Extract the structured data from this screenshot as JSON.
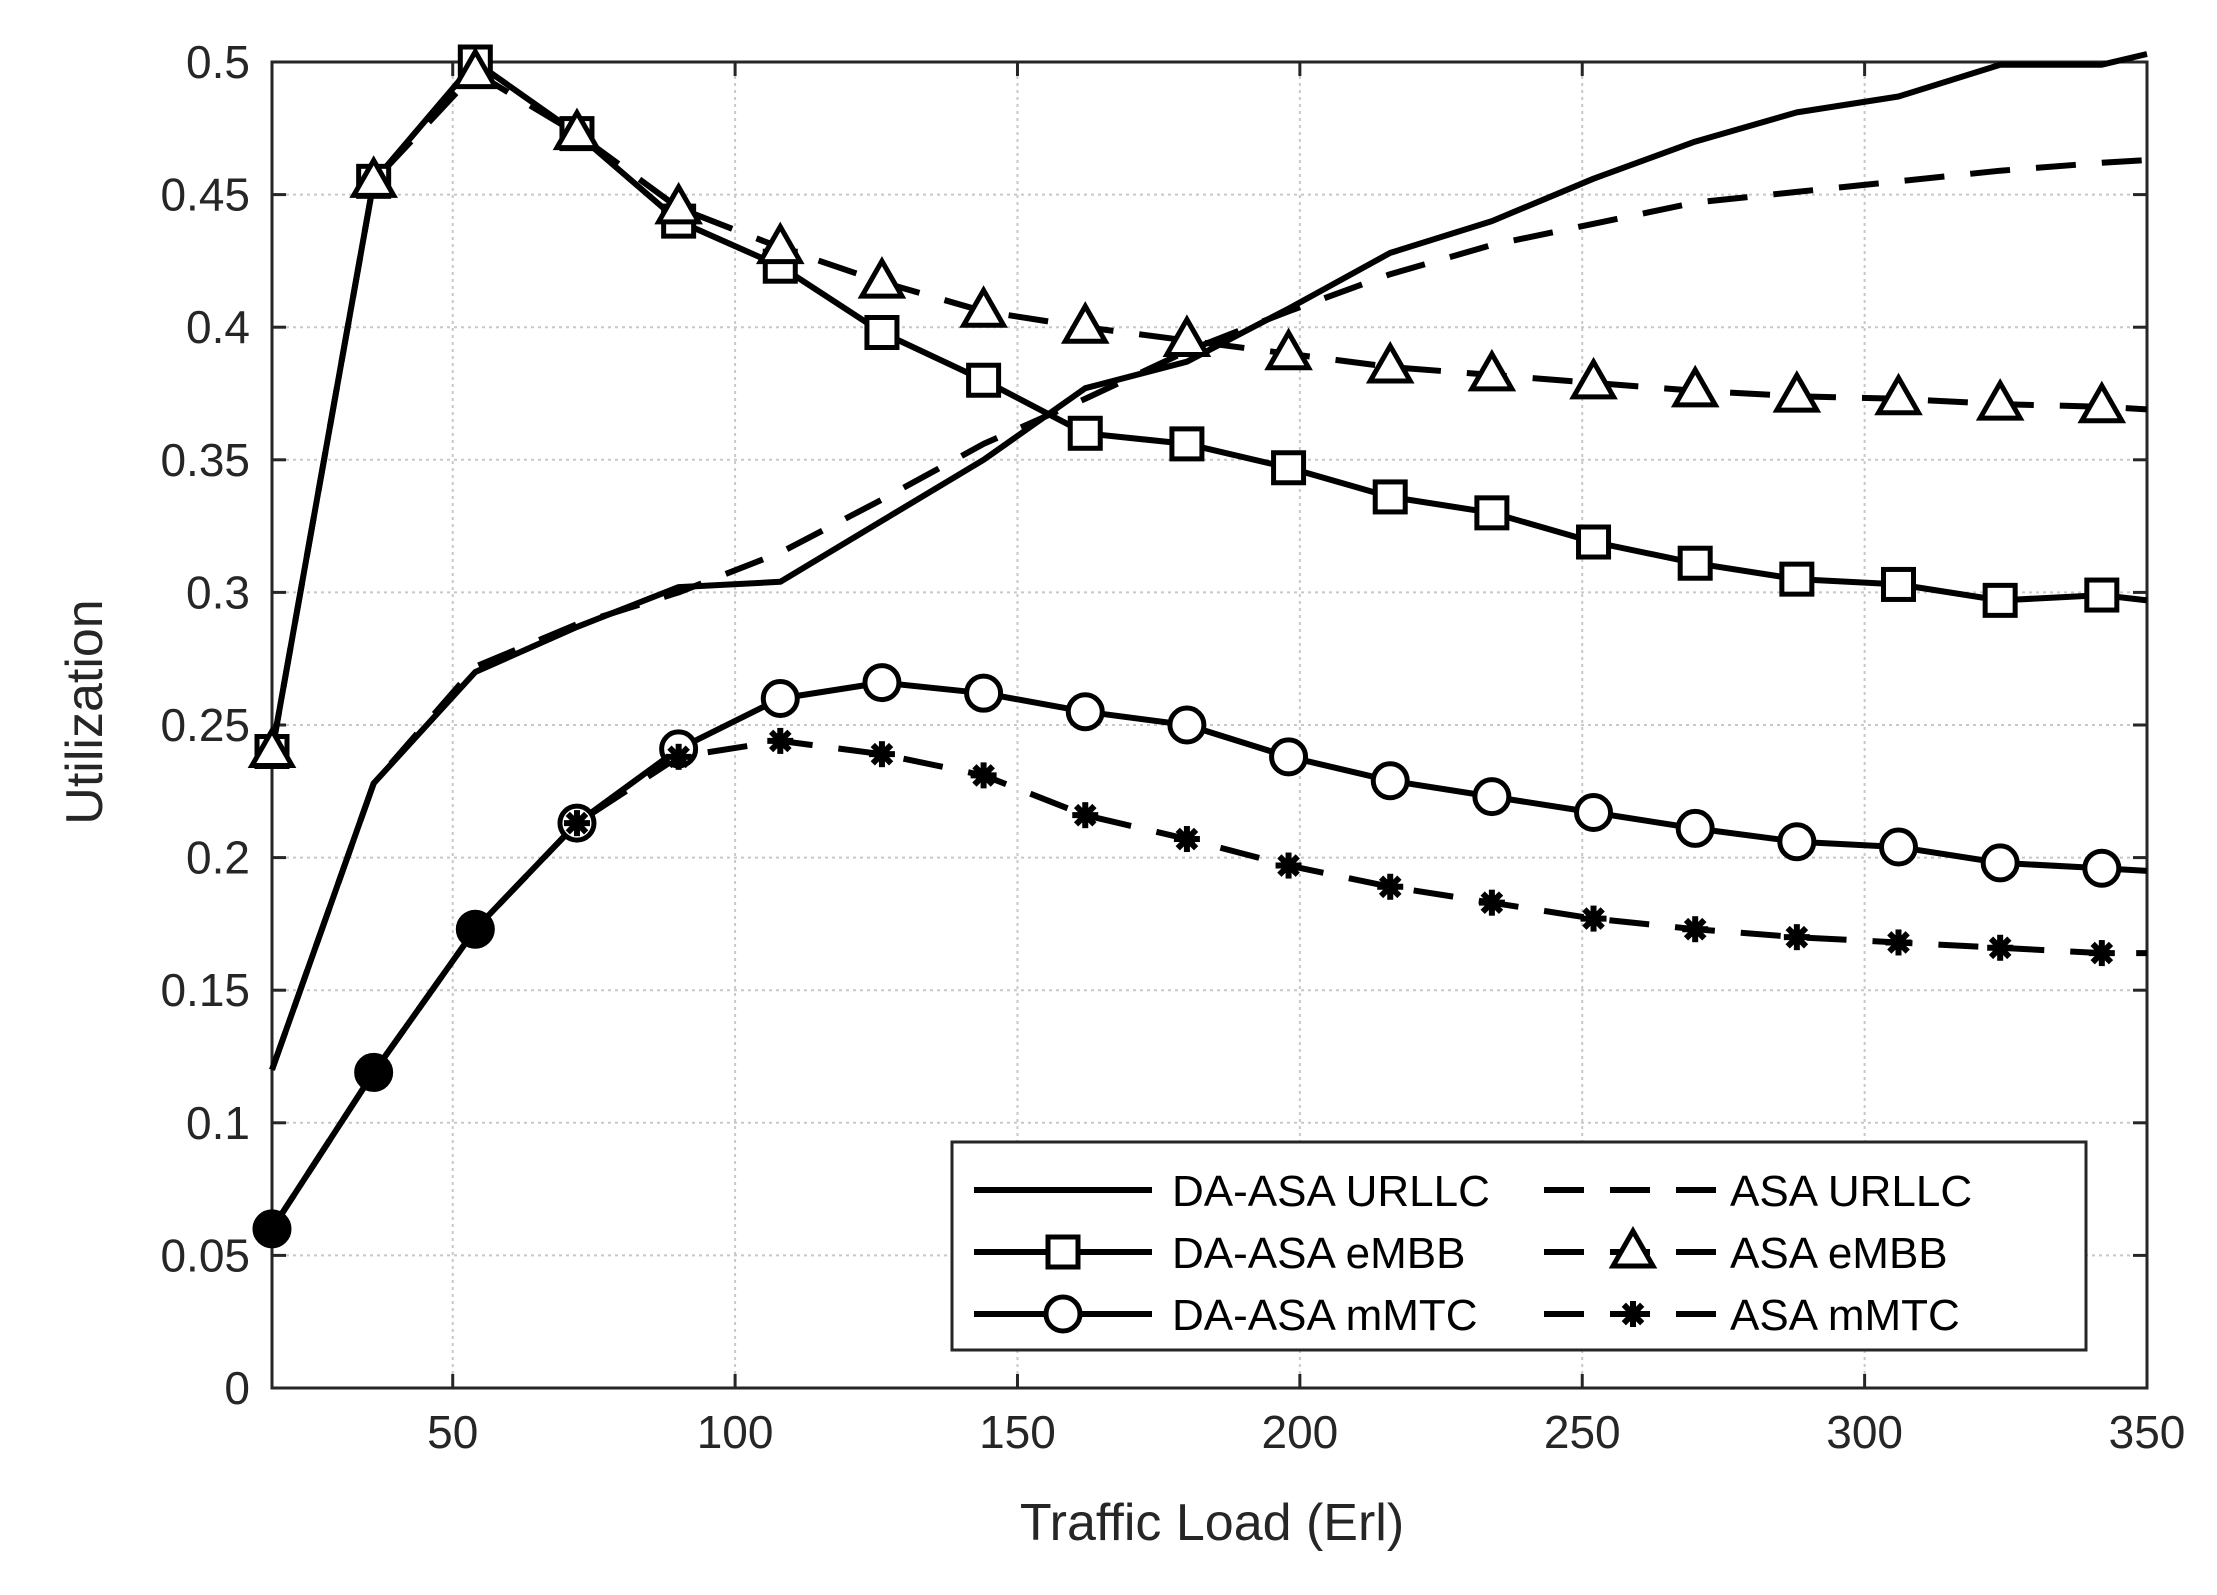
{
  "chart_data": {
    "type": "line",
    "title": "",
    "xlabel": "Traffic Load (Erl)",
    "ylabel": "Utilization",
    "xlim": [
      18,
      350
    ],
    "ylim": [
      0,
      0.5
    ],
    "xticks": [
      50,
      100,
      150,
      200,
      250,
      300,
      350
    ],
    "xtick_labels": [
      "50",
      "100",
      "150",
      "200",
      "250",
      "300",
      "350"
    ],
    "yticks": [
      0,
      0.05,
      0.1,
      0.15,
      0.2,
      0.25,
      0.3,
      0.35,
      0.4,
      0.45,
      0.5
    ],
    "ytick_labels": [
      "0",
      "0.05",
      "0.1",
      "0.15",
      "0.2",
      "0.25",
      "0.3",
      "0.35",
      "0.4",
      "0.45",
      "0.5"
    ],
    "grid": true,
    "legend_position": "bottom-right",
    "series": [
      {
        "name": "DA-ASA URLLC",
        "line": "solid",
        "marker": "none",
        "color": "#000000",
        "x": [
          18,
          36,
          54,
          72,
          90,
          108,
          126,
          144,
          162,
          180,
          198,
          216,
          234,
          252,
          270,
          288,
          306,
          324,
          342,
          350
        ],
        "y": [
          0.12,
          0.228,
          0.27,
          0.287,
          0.302,
          0.304,
          0.327,
          0.35,
          0.377,
          0.387,
          0.407,
          0.428,
          0.44,
          0.456,
          0.47,
          0.481,
          0.487,
          0.499,
          0.499,
          0.503
        ]
      },
      {
        "name": "ASA URLLC",
        "line": "dashed",
        "marker": "none",
        "color": "#000000",
        "x": [
          18,
          36,
          54,
          72,
          90,
          108,
          126,
          144,
          162,
          180,
          198,
          216,
          234,
          252,
          270,
          288,
          306,
          324,
          342,
          350
        ],
        "y": [
          0.12,
          0.228,
          0.272,
          0.288,
          0.3,
          0.315,
          0.335,
          0.356,
          0.373,
          0.391,
          0.406,
          0.42,
          0.431,
          0.439,
          0.447,
          0.451,
          0.455,
          0.459,
          0.462,
          0.463
        ]
      },
      {
        "name": "DA-ASA eMBB",
        "line": "solid",
        "marker": "square",
        "color": "#000000",
        "x": [
          18,
          36,
          54,
          72,
          90,
          108,
          126,
          144,
          162,
          180,
          198,
          216,
          234,
          252,
          270,
          288,
          306,
          324,
          342,
          350
        ],
        "y": [
          0.24,
          0.455,
          0.5,
          0.473,
          0.44,
          0.423,
          0.398,
          0.38,
          0.36,
          0.356,
          0.347,
          0.336,
          0.33,
          0.319,
          0.311,
          0.305,
          0.303,
          0.297,
          0.299,
          0.297
        ]
      },
      {
        "name": "ASA eMBB",
        "line": "dashed",
        "marker": "triangle",
        "color": "#000000",
        "x": [
          18,
          36,
          54,
          72,
          90,
          108,
          126,
          144,
          162,
          180,
          198,
          216,
          234,
          252,
          270,
          288,
          306,
          324,
          342,
          350
        ],
        "y": [
          0.24,
          0.455,
          0.496,
          0.473,
          0.445,
          0.43,
          0.417,
          0.406,
          0.4,
          0.395,
          0.39,
          0.385,
          0.382,
          0.379,
          0.376,
          0.374,
          0.373,
          0.371,
          0.37,
          0.369
        ]
      },
      {
        "name": "DA-ASA mMTC",
        "line": "solid",
        "marker": "circle",
        "color": "#000000",
        "x": [
          18,
          36,
          54,
          72,
          90,
          108,
          126,
          144,
          162,
          180,
          198,
          216,
          234,
          252,
          270,
          288,
          306,
          324,
          342,
          350
        ],
        "y": [
          0.06,
          0.119,
          0.173,
          0.213,
          0.241,
          0.26,
          0.266,
          0.262,
          0.255,
          0.25,
          0.238,
          0.229,
          0.223,
          0.217,
          0.211,
          0.206,
          0.204,
          0.198,
          0.196,
          0.195
        ]
      },
      {
        "name": "ASA mMTC",
        "line": "dashed",
        "marker": "asterisk",
        "color": "#000000",
        "x": [
          18,
          36,
          54,
          72,
          90,
          108,
          126,
          144,
          162,
          180,
          198,
          216,
          234,
          252,
          270,
          288,
          306,
          324,
          342,
          350
        ],
        "y": [
          0.06,
          0.119,
          0.173,
          0.213,
          0.238,
          0.244,
          0.239,
          0.231,
          0.216,
          0.207,
          0.197,
          0.189,
          0.183,
          0.177,
          0.173,
          0.17,
          0.168,
          0.166,
          0.164,
          0.164
        ]
      }
    ]
  }
}
